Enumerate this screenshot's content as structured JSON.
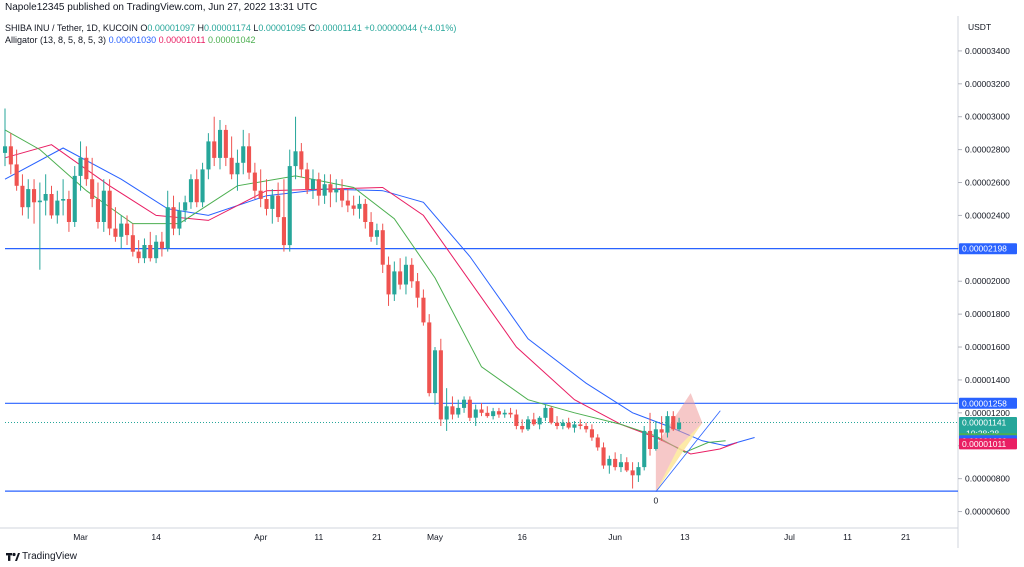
{
  "header": {
    "published": "Napole12345 published on TradingView.com, Jun 27, 2022 13:31 UTC"
  },
  "legend": {
    "symbol": "SHIBA INU / Tether, 1D, KUCOIN",
    "ohlc": [
      {
        "k": "O",
        "v": "0.00001097"
      },
      {
        "k": "H",
        "v": "0.00001174"
      },
      {
        "k": "L",
        "v": "0.00001095"
      },
      {
        "k": "C",
        "v": "0.00001141"
      }
    ],
    "change": "+0.00000044 (+4.01%)",
    "alligator_label": "Alligator (13, 8, 5, 8, 5, 3)",
    "alligator_values": [
      "0.00001030",
      "0.00001011",
      "0.00001042"
    ]
  },
  "colors": {
    "up": "#26a69a",
    "down": "#ef5350",
    "jaw": "#2962ff",
    "teeth": "#e91e63",
    "lips": "#4caf50",
    "hline": "#2962ff",
    "current": "#26a69a",
    "pattern_up": "#ef9a9a",
    "pattern_down": "#fff59d"
  },
  "footer": {
    "brand": "TradingView"
  },
  "chart_data": {
    "type": "candlestick",
    "currency": "USDT",
    "y_ticks": [
      "0.00003400",
      "0.00003200",
      "0.00003000",
      "0.00002800",
      "0.00002600",
      "0.00002400",
      "0.00002200",
      "0.00002000",
      "0.00001800",
      "0.00001600",
      "0.00001400",
      "0.00001200",
      "0.00001000",
      "0.00000800",
      "0.00000600"
    ],
    "ylim": [
      5e-06,
      3.6e-05
    ],
    "x_ticks": [
      {
        "label": "Mar",
        "date": "2022-03-01"
      },
      {
        "label": "14",
        "date": "2022-03-14"
      },
      {
        "label": "Apr",
        "date": "2022-04-01"
      },
      {
        "label": "11",
        "date": "2022-04-11"
      },
      {
        "label": "21",
        "date": "2022-04-21"
      },
      {
        "label": "May",
        "date": "2022-05-01"
      },
      {
        "label": "16",
        "date": "2022-05-16"
      },
      {
        "label": "Jun",
        "date": "2022-06-01"
      },
      {
        "label": "13",
        "date": "2022-06-13"
      },
      {
        "label": "Jul",
        "date": "2022-07-01"
      },
      {
        "label": "11",
        "date": "2022-07-11"
      },
      {
        "label": "21",
        "date": "2022-07-21"
      }
    ],
    "x_range": [
      "2022-02-16",
      "2022-07-30"
    ],
    "candles": {
      "start_date": "2022-02-16",
      "ohlc": [
        [
          2.78e-05,
          3.05e-05,
          2.7e-05,
          2.82e-05
        ],
        [
          2.82e-05,
          2.9e-05,
          2.65e-05,
          2.71e-05
        ],
        [
          2.71e-05,
          2.8e-05,
          2.55e-05,
          2.58e-05
        ],
        [
          2.58e-05,
          2.65e-05,
          2.4e-05,
          2.45e-05
        ],
        [
          2.45e-05,
          2.62e-05,
          2.38e-05,
          2.56e-05
        ],
        [
          2.56e-05,
          2.62e-05,
          2.35e-05,
          2.48e-05
        ],
        [
          2.48e-05,
          2.6e-05,
          2.07e-05,
          2.49e-05
        ],
        [
          2.49e-05,
          2.65e-05,
          2.4e-05,
          2.53e-05
        ],
        [
          2.53e-05,
          2.58e-05,
          2.38e-05,
          2.4e-05
        ],
        [
          2.4e-05,
          2.55e-05,
          2.35e-05,
          2.49e-05
        ],
        [
          2.49e-05,
          2.62e-05,
          2.4e-05,
          2.5e-05
        ],
        [
          2.5e-05,
          2.55e-05,
          2.3e-05,
          2.36e-05
        ],
        [
          2.36e-05,
          2.7e-05,
          2.33e-05,
          2.64e-05
        ],
        [
          2.64e-05,
          2.85e-05,
          2.55e-05,
          2.75e-05
        ],
        [
          2.75e-05,
          2.82e-05,
          2.58e-05,
          2.62e-05
        ],
        [
          2.62e-05,
          2.75e-05,
          2.45e-05,
          2.5e-05
        ],
        [
          2.5e-05,
          2.6e-05,
          2.32e-05,
          2.36e-05
        ],
        [
          2.36e-05,
          2.62e-05,
          2.3e-05,
          2.55e-05
        ],
        [
          2.55e-05,
          2.62e-05,
          2.28e-05,
          2.32e-05
        ],
        [
          2.32e-05,
          2.45e-05,
          2.24e-05,
          2.27e-05
        ],
        [
          2.27e-05,
          2.4e-05,
          2.2e-05,
          2.35e-05
        ],
        [
          2.35e-05,
          2.4e-05,
          2.22e-05,
          2.28e-05
        ],
        [
          2.28e-05,
          2.35e-05,
          2.15e-05,
          2.18e-05
        ],
        [
          2.18e-05,
          2.25e-05,
          2.11e-05,
          2.14e-05
        ],
        [
          2.14e-05,
          2.26e-05,
          2.11e-05,
          2.22e-05
        ],
        [
          2.22e-05,
          2.3e-05,
          2.12e-05,
          2.14e-05
        ],
        [
          2.14e-05,
          2.28e-05,
          2.11e-05,
          2.24e-05
        ],
        [
          2.24e-05,
          2.3e-05,
          2.15e-05,
          2.2e-05
        ],
        [
          2.2e-05,
          2.55e-05,
          2.18e-05,
          2.45e-05
        ],
        [
          2.45e-05,
          2.52e-05,
          2.28e-05,
          2.32e-05
        ],
        [
          2.32e-05,
          2.48e-05,
          2.28e-05,
          2.43e-05
        ],
        [
          2.43e-05,
          2.52e-05,
          2.36e-05,
          2.48e-05
        ],
        [
          2.48e-05,
          2.65e-05,
          2.44e-05,
          2.62e-05
        ],
        [
          2.62e-05,
          2.68e-05,
          2.45e-05,
          2.48e-05
        ],
        [
          2.48e-05,
          2.72e-05,
          2.45e-05,
          2.68e-05
        ],
        [
          2.68e-05,
          2.9e-05,
          2.62e-05,
          2.85e-05
        ],
        [
          2.85e-05,
          3e-05,
          2.7e-05,
          2.75e-05
        ],
        [
          2.75e-05,
          2.98e-05,
          2.68e-05,
          2.92e-05
        ],
        [
          2.92e-05,
          2.95e-05,
          2.7e-05,
          2.75e-05
        ],
        [
          2.75e-05,
          2.88e-05,
          2.62e-05,
          2.65e-05
        ],
        [
          2.65e-05,
          2.8e-05,
          2.55e-05,
          2.72e-05
        ],
        [
          2.72e-05,
          2.92e-05,
          2.65e-05,
          2.82e-05
        ],
        [
          2.82e-05,
          2.9e-05,
          2.62e-05,
          2.66e-05
        ],
        [
          2.66e-05,
          2.72e-05,
          2.5e-05,
          2.55e-05
        ],
        [
          2.55e-05,
          2.68e-05,
          2.45e-05,
          2.5e-05
        ],
        [
          2.5e-05,
          2.62e-05,
          2.4e-05,
          2.44e-05
        ],
        [
          2.44e-05,
          2.56e-05,
          2.35e-05,
          2.52e-05
        ],
        [
          2.52e-05,
          2.6e-05,
          2.36e-05,
          2.39e-05
        ],
        [
          2.39e-05,
          2.62e-05,
          2.18e-05,
          2.22e-05
        ],
        [
          2.22e-05,
          2.8e-05,
          2.18e-05,
          2.7e-05
        ],
        [
          2.7e-05,
          3e-05,
          2.62e-05,
          2.79e-05
        ],
        [
          2.79e-05,
          2.84e-05,
          2.63e-05,
          2.68e-05
        ],
        [
          2.68e-05,
          2.72e-05,
          2.53e-05,
          2.56e-05
        ],
        [
          2.56e-05,
          2.68e-05,
          2.5e-05,
          2.62e-05
        ],
        [
          2.62e-05,
          2.66e-05,
          2.46e-05,
          2.52e-05
        ],
        [
          2.52e-05,
          2.65e-05,
          2.47e-05,
          2.59e-05
        ],
        [
          2.59e-05,
          2.65e-05,
          2.45e-05,
          2.54e-05
        ],
        [
          2.54e-05,
          2.62e-05,
          2.48e-05,
          2.56e-05
        ],
        [
          2.56e-05,
          2.62e-05,
          2.45e-05,
          2.49e-05
        ],
        [
          2.49e-05,
          2.56e-05,
          2.42e-05,
          2.46e-05
        ],
        [
          2.46e-05,
          2.52e-05,
          2.4e-05,
          2.44e-05
        ],
        [
          2.44e-05,
          2.52e-05,
          2.38e-05,
          2.47e-05
        ],
        [
          2.47e-05,
          2.5e-05,
          2.32e-05,
          2.36e-05
        ],
        [
          2.36e-05,
          2.42e-05,
          2.24e-05,
          2.27e-05
        ],
        [
          2.27e-05,
          2.35e-05,
          2.22e-05,
          2.31e-05
        ],
        [
          2.31e-05,
          2.35e-05,
          2.05e-05,
          2.1e-05
        ],
        [
          2.1e-05,
          2.15e-05,
          1.85e-05,
          1.92e-05
        ],
        [
          1.92e-05,
          2.12e-05,
          1.88e-05,
          2.06e-05
        ],
        [
          2.06e-05,
          2.14e-05,
          1.95e-05,
          1.98e-05
        ],
        [
          1.98e-05,
          2.15e-05,
          1.92e-05,
          2.1e-05
        ],
        [
          2.1e-05,
          2.14e-05,
          1.96e-05,
          2e-05
        ],
        [
          2e-05,
          2.05e-05,
          1.84e-05,
          1.9e-05
        ],
        [
          1.9e-05,
          1.95e-05,
          1.73e-05,
          1.75e-05
        ],
        [
          1.75e-05,
          1.8e-05,
          1.3e-05,
          1.32e-05
        ],
        [
          1.32e-05,
          1.6e-05,
          1.25e-05,
          1.58e-05
        ],
        [
          1.58e-05,
          1.65e-05,
          1.12e-05,
          1.16e-05
        ],
        [
          1.16e-05,
          1.35e-05,
          1.09e-05,
          1.24e-05
        ],
        [
          1.24e-05,
          1.3e-05,
          1.16e-05,
          1.19e-05
        ],
        [
          1.19e-05,
          1.28e-05,
          1.17e-05,
          1.23e-05
        ],
        [
          1.23e-05,
          1.3e-05,
          1.2e-05,
          1.28e-05
        ],
        [
          1.28e-05,
          1.3e-05,
          1.15e-05,
          1.17e-05
        ],
        [
          1.17e-05,
          1.25e-05,
          1.12e-05,
          1.22e-05
        ],
        [
          1.22e-05,
          1.26e-05,
          1.18e-05,
          1.2e-05
        ],
        [
          1.2e-05,
          1.24e-05,
          1.17e-05,
          1.18e-05
        ],
        [
          1.18e-05,
          1.23e-05,
          1.16e-05,
          1.21e-05
        ],
        [
          1.21e-05,
          1.23e-05,
          1.17e-05,
          1.19e-05
        ],
        [
          1.19e-05,
          1.22e-05,
          1.17e-05,
          1.2e-05
        ],
        [
          1.2e-05,
          1.23e-05,
          1.17e-05,
          1.19e-05
        ],
        [
          1.19e-05,
          1.22e-05,
          1.1e-05,
          1.12e-05
        ],
        [
          1.12e-05,
          1.16e-05,
          1.08e-05,
          1.1e-05
        ],
        [
          1.1e-05,
          1.18e-05,
          1.09e-05,
          1.16e-05
        ],
        [
          1.16e-05,
          1.2e-05,
          1.12e-05,
          1.13e-05
        ],
        [
          1.13e-05,
          1.18e-05,
          1.1e-05,
          1.17e-05
        ],
        [
          1.17e-05,
          1.25e-05,
          1.15e-05,
          1.23e-05
        ],
        [
          1.23e-05,
          1.24e-05,
          1.13e-05,
          1.14e-05
        ],
        [
          1.14e-05,
          1.18e-05,
          1.1e-05,
          1.12e-05
        ],
        [
          1.12e-05,
          1.16e-05,
          1.1e-05,
          1.14e-05
        ],
        [
          1.14e-05,
          1.17e-05,
          1.1e-05,
          1.11e-05
        ],
        [
          1.11e-05,
          1.15e-05,
          1.08e-05,
          1.13e-05
        ],
        [
          1.13e-05,
          1.16e-05,
          1.1e-05,
          1.12e-05
        ],
        [
          1.12e-05,
          1.14e-05,
          1.08e-05,
          1.1e-05
        ],
        [
          1.1e-05,
          1.13e-05,
          1.03e-05,
          1.05e-05
        ],
        [
          1.05e-05,
          1.07e-05,
          9.7e-06,
          9.9e-06
        ],
        [
          9.9e-06,
          1.02e-05,
          8.6e-06,
          8.8e-06
        ],
        [
          8.8e-06,
          9.4e-06,
          8.3e-06,
          9.2e-06
        ],
        [
          9.2e-06,
          9.6e-06,
          8.5e-06,
          8.7e-06
        ],
        [
          8.7e-06,
          9.5e-06,
          8.4e-06,
          9e-06
        ],
        [
          9e-06,
          9.3e-06,
          8.4e-06,
          8.5e-06
        ],
        [
          8.5e-06,
          9e-06,
          7.4e-06,
          8.2e-06
        ],
        [
          8.2e-06,
          9e-06,
          7.8e-06,
          8.7e-06
        ],
        [
          8.7e-06,
          1.12e-05,
          8.5e-06,
          1.09e-05
        ],
        [
          1.09e-05,
          1.2e-05,
          9.4e-06,
          9.8e-06
        ],
        [
          9.8e-06,
          1.15e-05,
          9.7e-06,
          1.1e-05
        ],
        [
          1.1e-05,
          1.18e-05,
          1.03e-05,
          1.08e-05
        ],
        [
          1.08e-05,
          1.21e-05,
          1.05e-05,
          1.18e-05
        ],
        [
          1.18e-05,
          1.21e-05,
          1.09e-05,
          1.1e-05
        ],
        [
          1.1e-05,
          1.17e-05,
          1.09e-05,
          1.14e-05
        ]
      ]
    },
    "alligator": {
      "jaw_color_name": "blue",
      "teeth_color_name": "red",
      "lips_color_name": "green",
      "jaw": [
        [
          0,
          2.62e-05
        ],
        [
          10,
          2.81e-05
        ],
        [
          20,
          2.62e-05
        ],
        [
          28,
          2.44e-05
        ],
        [
          35,
          2.4e-05
        ],
        [
          45,
          2.52e-05
        ],
        [
          55,
          2.56e-05
        ],
        [
          65,
          2.55e-05
        ],
        [
          72,
          2.48e-05
        ],
        [
          80,
          2.15e-05
        ],
        [
          90,
          1.65e-05
        ],
        [
          100,
          1.38e-05
        ],
        [
          108,
          1.2e-05
        ],
        [
          114,
          1.12e-05
        ],
        [
          120,
          1.03e-05
        ],
        [
          124,
          1e-05
        ],
        [
          129,
          1.05e-05
        ]
      ],
      "teeth": [
        [
          0,
          2.75e-05
        ],
        [
          8,
          2.83e-05
        ],
        [
          18,
          2.58e-05
        ],
        [
          26,
          2.4e-05
        ],
        [
          35,
          2.37e-05
        ],
        [
          45,
          2.55e-05
        ],
        [
          55,
          2.56e-05
        ],
        [
          65,
          2.57e-05
        ],
        [
          72,
          2.4e-05
        ],
        [
          80,
          2e-05
        ],
        [
          88,
          1.6e-05
        ],
        [
          98,
          1.28e-05
        ],
        [
          106,
          1.13e-05
        ],
        [
          112,
          1.05e-05
        ],
        [
          118,
          9.5e-06
        ],
        [
          123,
          9.8e-06
        ],
        [
          126,
          1.02e-05
        ]
      ],
      "lips": [
        [
          0,
          2.92e-05
        ],
        [
          6,
          2.8e-05
        ],
        [
          14,
          2.55e-05
        ],
        [
          22,
          2.35e-05
        ],
        [
          30,
          2.35e-05
        ],
        [
          40,
          2.58e-05
        ],
        [
          50,
          2.64e-05
        ],
        [
          60,
          2.57e-05
        ],
        [
          67,
          2.38e-05
        ],
        [
          74,
          2.02e-05
        ],
        [
          82,
          1.48e-05
        ],
        [
          90,
          1.28e-05
        ],
        [
          98,
          1.2e-05
        ],
        [
          106,
          1.13e-05
        ],
        [
          112,
          1.06e-05
        ],
        [
          117,
          9.6e-06
        ],
        [
          121,
          1.02e-05
        ],
        [
          124,
          1.03e-05
        ]
      ]
    },
    "horizontal_levels": [
      2.198e-05,
      1.258e-05,
      7.24e-06
    ],
    "current_price": 1.141e-05,
    "countdown": "10:28:28",
    "price_tags": [
      {
        "label": "0.00002198",
        "value": 2.198e-05,
        "color_key": "hline"
      },
      {
        "label": "0.00001258",
        "value": 1.258e-05,
        "color_key": "hline"
      },
      {
        "label": "0.00001141",
        "value": 1.141e-05,
        "color_key": "current"
      },
      {
        "label": "0.00001042",
        "value": 1.042e-05,
        "color_key": "lips"
      },
      {
        "label": "0.00001030",
        "value": 1.03e-05,
        "color_key": "jaw"
      },
      {
        "label": "0.00001011",
        "value": 1.011e-05,
        "color_key": "teeth"
      }
    ],
    "pattern_annotation": "0",
    "rising_channel": {
      "upper": [
        [
          112,
          1e-05
        ],
        [
          118,
          1.32e-05
        ]
      ],
      "lower": [
        [
          112,
          7.2e-06
        ],
        [
          120,
          1.14e-05
        ]
      ]
    },
    "grid": false
  }
}
